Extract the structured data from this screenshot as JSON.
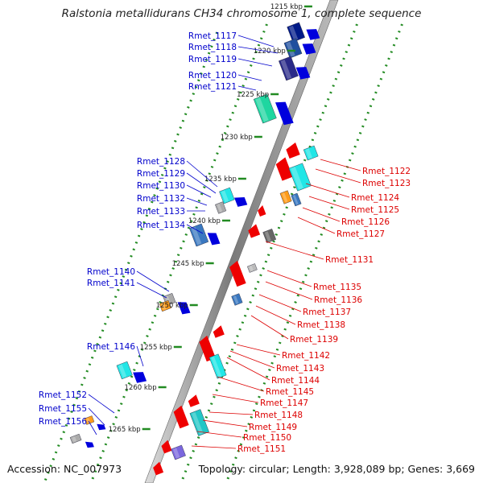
{
  "title": "Ralstonia metallidurans CH34 chromosome 1, complete sequence",
  "accession": "Accession: NC_007973",
  "stats": "Topology: circular; Length: 3,928,089 bp; Genes: 3,669",
  "colors": {
    "backbone": "#9a9a9a",
    "forward_label": "#0000cc",
    "reverse_label": "#dd0000",
    "forward_gene": "#0000dd",
    "reverse_gene": "#ee0000",
    "dotted_track": "#228b22"
  },
  "ticks": [
    "1215 kbp",
    "1220 kbp",
    "1225 kbp",
    "1230 kbp",
    "1235 kbp",
    "1240 kbp",
    "1245 kbp",
    "1250 kbp",
    "1255 kbp",
    "1260 kbp",
    "1265 kbp"
  ],
  "forward_genes": [
    "Rmet_1117",
    "Rmet_1118",
    "Rmet_1119",
    "Rmet_1120",
    "Rmet_1121",
    "Rmet_1128",
    "Rmet_1129",
    "Rmet_1130",
    "Rmet_1132",
    "Rmet_1133",
    "Rmet_1134",
    "Rmet_1140",
    "Rmet_1141",
    "Rmet_1146",
    "Rmet_1152",
    "Rmet_1155",
    "Rmet_1156"
  ],
  "reverse_genes": [
    "Rmet_1122",
    "Rmet_1123",
    "Rmet_1124",
    "Rmet_1125",
    "Rmet_1126",
    "Rmet_1127",
    "Rmet_1131",
    "Rmet_1135",
    "Rmet_1136",
    "Rmet_1137",
    "Rmet_1138",
    "Rmet_1139",
    "Rmet_1142",
    "Rmet_1143",
    "Rmet_1144",
    "Rmet_1145",
    "Rmet_1147",
    "Rmet_1148",
    "Rmet_1149",
    "Rmet_1150",
    "Rmet_1151"
  ]
}
